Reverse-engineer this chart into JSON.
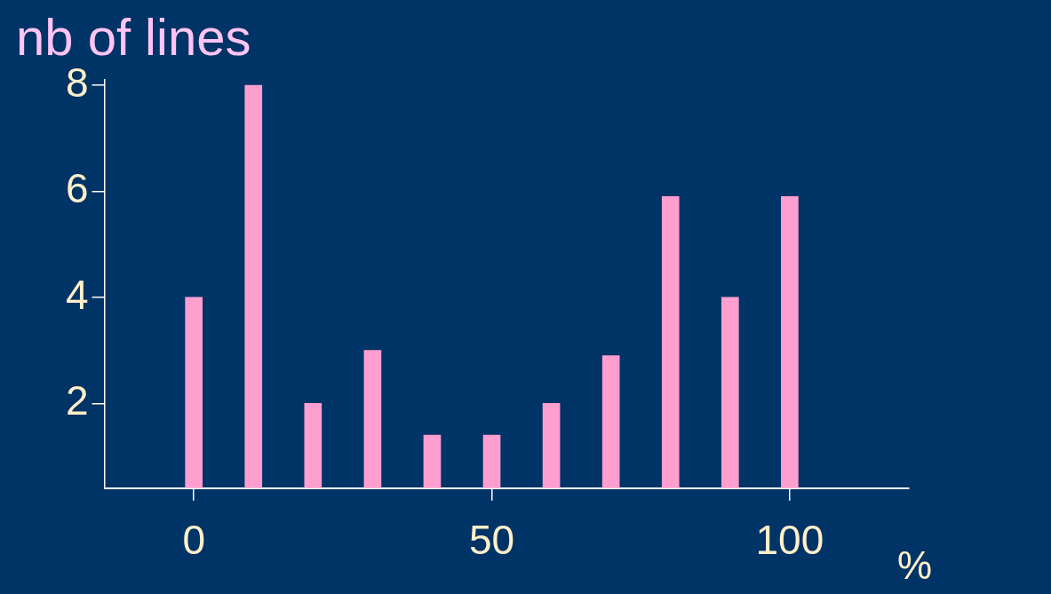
{
  "chart_data": {
    "type": "bar",
    "ylabel": "nb of lines",
    "xlabel": "%",
    "x": [
      0,
      10,
      20,
      30,
      40,
      50,
      60,
      70,
      80,
      90,
      100
    ],
    "values": [
      4,
      8,
      2,
      3,
      1.4,
      1.4,
      2,
      2.9,
      5.9,
      4,
      5.9
    ],
    "color": "#ff9fd0",
    "xlim": [
      -15,
      120
    ],
    "xticks": [
      0,
      50,
      100
    ],
    "ylim": [
      0.4,
      8.1
    ],
    "yticks": [
      2,
      4,
      6,
      8
    ],
    "grid": false,
    "legend": false
  }
}
